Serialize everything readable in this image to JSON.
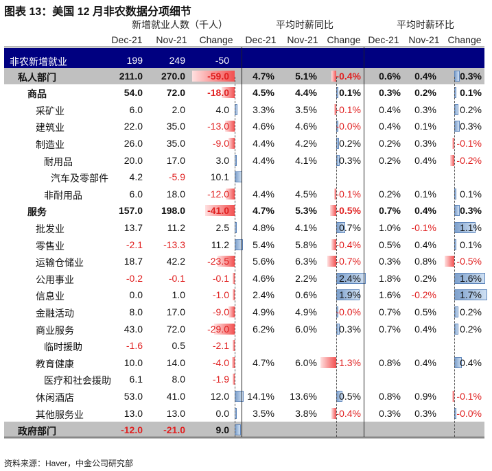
{
  "title": "图表 13：美国 12 月非农数据分项细节",
  "groups": {
    "g1": "新增就业人数（千人）",
    "g2": "平均时薪同比",
    "g3": "平均时薪环比"
  },
  "col_headers": [
    "Dec-21",
    "Nov-21",
    "Change",
    "Dec-21",
    "Nov-21",
    "Change",
    "Dec-21",
    "Nov-21",
    "Change"
  ],
  "source": "资料来源：Haver，中金公司研究部",
  "colors": {
    "navy": "#000080",
    "gray": "#bdbdbd",
    "neg": "#e02020",
    "pos_bar": "#7da0cc"
  },
  "rows": [
    {
      "label": "非农新增就业",
      "indent": 0,
      "style": "navy",
      "v": [
        "199",
        "249",
        "-50",
        "",
        "",
        "",
        "",
        "",
        ""
      ],
      "c": [
        null,
        null,
        -50,
        null,
        null,
        null,
        null,
        null,
        null
      ]
    },
    {
      "label": "私人部门",
      "indent": 1,
      "style": "gray",
      "v": [
        "211.0",
        "270.0",
        "-59.0",
        "4.7%",
        "5.1%",
        "-0.4%",
        "0.6%",
        "0.4%",
        "0.3%"
      ],
      "c": [
        null,
        null,
        -59,
        null,
        null,
        -0.4,
        null,
        null,
        0.3
      ]
    },
    {
      "label": "商品",
      "indent": 2,
      "style": "bold",
      "v": [
        "54.0",
        "72.0",
        "-18.0",
        "4.5%",
        "4.4%",
        "0.1%",
        "0.3%",
        "0.2%",
        "0.1%"
      ],
      "c": [
        null,
        null,
        -18,
        null,
        null,
        0.1,
        null,
        null,
        0.1
      ]
    },
    {
      "label": "采矿业",
      "indent": 3,
      "style": "",
      "v": [
        "6.0",
        "2.0",
        "4.0",
        "3.3%",
        "3.5%",
        "-0.1%",
        "0.4%",
        "0.3%",
        "0.2%"
      ],
      "c": [
        null,
        null,
        4,
        null,
        null,
        -0.1,
        null,
        null,
        0.2
      ]
    },
    {
      "label": "建筑业",
      "indent": 3,
      "style": "",
      "v": [
        "22.0",
        "35.0",
        "-13.0",
        "4.6%",
        "4.6%",
        "-0.0%",
        "0.4%",
        "0.1%",
        "0.3%"
      ],
      "c": [
        null,
        null,
        -13,
        null,
        null,
        -0.0,
        null,
        null,
        0.3
      ]
    },
    {
      "label": "制造业",
      "indent": 3,
      "style": "",
      "v": [
        "26.0",
        "35.0",
        "-9.0",
        "4.4%",
        "4.2%",
        "0.2%",
        "0.2%",
        "0.3%",
        "-0.1%"
      ],
      "c": [
        null,
        null,
        -9,
        null,
        null,
        0.2,
        null,
        null,
        -0.1
      ]
    },
    {
      "label": "耐用品",
      "indent": 4,
      "style": "",
      "v": [
        "20.0",
        "17.0",
        "3.0",
        "4.4%",
        "4.1%",
        "0.3%",
        "0.2%",
        "0.4%",
        "-0.2%"
      ],
      "c": [
        null,
        null,
        3,
        null,
        null,
        0.3,
        null,
        null,
        -0.2
      ]
    },
    {
      "label": "汽车及零部件",
      "indent": 5,
      "style": "",
      "v": [
        "4.2",
        "-5.9",
        "10.1",
        "",
        "",
        "",
        "",
        "",
        ""
      ],
      "c": [
        null,
        null,
        10.1,
        null,
        null,
        null,
        null,
        null,
        null
      ]
    },
    {
      "label": "非耐用品",
      "indent": 4,
      "style": "",
      "v": [
        "6.0",
        "18.0",
        "-12.0",
        "4.4%",
        "4.5%",
        "-0.1%",
        "0.2%",
        "0.1%",
        "0.1%"
      ],
      "c": [
        null,
        null,
        -12,
        null,
        null,
        -0.1,
        null,
        null,
        0.1
      ]
    },
    {
      "label": "服务",
      "indent": 2,
      "style": "bold",
      "v": [
        "157.0",
        "198.0",
        "-41.0",
        "4.7%",
        "5.3%",
        "-0.5%",
        "0.7%",
        "0.4%",
        "0.3%"
      ],
      "c": [
        null,
        null,
        -41,
        null,
        null,
        -0.5,
        null,
        null,
        0.3
      ]
    },
    {
      "label": "批发业",
      "indent": 3,
      "style": "",
      "v": [
        "13.7",
        "11.2",
        "2.5",
        "4.8%",
        "4.1%",
        "0.7%",
        "1.0%",
        "-0.1%",
        "1.1%"
      ],
      "c": [
        null,
        null,
        2.5,
        null,
        null,
        0.7,
        null,
        null,
        1.1
      ]
    },
    {
      "label": "零售业",
      "indent": 3,
      "style": "",
      "v": [
        "-2.1",
        "-13.3",
        "11.2",
        "5.4%",
        "5.8%",
        "-0.4%",
        "0.5%",
        "0.4%",
        "0.1%"
      ],
      "c": [
        null,
        null,
        11.2,
        null,
        null,
        -0.4,
        null,
        null,
        0.1
      ]
    },
    {
      "label": "运输仓储业",
      "indent": 3,
      "style": "",
      "v": [
        "18.7",
        "42.2",
        "-23.5",
        "5.6%",
        "6.3%",
        "-0.7%",
        "0.3%",
        "0.8%",
        "-0.5%"
      ],
      "c": [
        null,
        null,
        -23.5,
        null,
        null,
        -0.7,
        null,
        null,
        -0.5
      ]
    },
    {
      "label": "公用事业",
      "indent": 3,
      "style": "",
      "v": [
        "-0.2",
        "-0.1",
        "-0.1",
        "4.6%",
        "2.2%",
        "2.4%",
        "1.8%",
        "0.2%",
        "1.6%"
      ],
      "c": [
        null,
        null,
        -0.1,
        null,
        null,
        2.4,
        null,
        null,
        1.6
      ]
    },
    {
      "label": "信息业",
      "indent": 3,
      "style": "",
      "v": [
        "0.0",
        "1.0",
        "-1.0",
        "2.4%",
        "0.6%",
        "1.9%",
        "1.6%",
        "-0.2%",
        "1.7%"
      ],
      "c": [
        null,
        null,
        -1,
        null,
        null,
        1.9,
        null,
        null,
        1.7
      ]
    },
    {
      "label": "金融活动",
      "indent": 3,
      "style": "",
      "v": [
        "8.0",
        "17.0",
        "-9.0",
        "4.9%",
        "4.9%",
        "-0.0%",
        "0.7%",
        "0.5%",
        "0.2%"
      ],
      "c": [
        null,
        null,
        -9,
        null,
        null,
        -0.0,
        null,
        null,
        0.2
      ]
    },
    {
      "label": "商业服务",
      "indent": 3,
      "style": "",
      "v": [
        "43.0",
        "72.0",
        "-29.0",
        "6.2%",
        "6.0%",
        "0.3%",
        "0.7%",
        "0.4%",
        "0.2%"
      ],
      "c": [
        null,
        null,
        -29,
        null,
        null,
        0.3,
        null,
        null,
        0.2
      ]
    },
    {
      "label": "临时援助",
      "indent": 4,
      "style": "",
      "v": [
        "-1.6",
        "0.5",
        "-2.1",
        "",
        "",
        "",
        "",
        "",
        ""
      ],
      "c": [
        null,
        null,
        -2.1,
        null,
        null,
        null,
        null,
        null,
        null
      ]
    },
    {
      "label": "教育健康",
      "indent": 3,
      "style": "",
      "v": [
        "10.0",
        "14.0",
        "-4.0",
        "4.7%",
        "6.0%",
        "-1.3%",
        "0.8%",
        "0.4%",
        "0.4%"
      ],
      "c": [
        null,
        null,
        -4,
        null,
        null,
        -1.3,
        null,
        null,
        0.4
      ]
    },
    {
      "label": "医疗和社会援助",
      "indent": 4,
      "style": "",
      "v": [
        "6.1",
        "8.0",
        "-1.9",
        "",
        "",
        "",
        "",
        "",
        ""
      ],
      "c": [
        null,
        null,
        -1.9,
        null,
        null,
        null,
        null,
        null,
        null
      ]
    },
    {
      "label": "休闲酒店",
      "indent": 3,
      "style": "",
      "v": [
        "53.0",
        "41.0",
        "12.0",
        "14.1%",
        "13.6%",
        "0.5%",
        "0.8%",
        "0.9%",
        "-0.1%"
      ],
      "c": [
        null,
        null,
        12,
        null,
        null,
        0.5,
        null,
        null,
        -0.1
      ]
    },
    {
      "label": "其他服务业",
      "indent": 3,
      "style": "",
      "v": [
        "13.0",
        "13.0",
        "0.0",
        "3.5%",
        "3.8%",
        "-0.4%",
        "0.3%",
        "0.3%",
        "-0.0%"
      ],
      "c": [
        null,
        null,
        0,
        null,
        null,
        -0.4,
        null,
        null,
        -0.0
      ]
    },
    {
      "label": "政府部门",
      "indent": 1,
      "style": "gray",
      "v": [
        "-12.0",
        "-21.0",
        "9.0",
        "",
        "",
        "",
        "",
        "",
        ""
      ],
      "c": [
        null,
        null,
        9,
        null,
        null,
        null,
        null,
        null,
        null
      ]
    }
  ]
}
